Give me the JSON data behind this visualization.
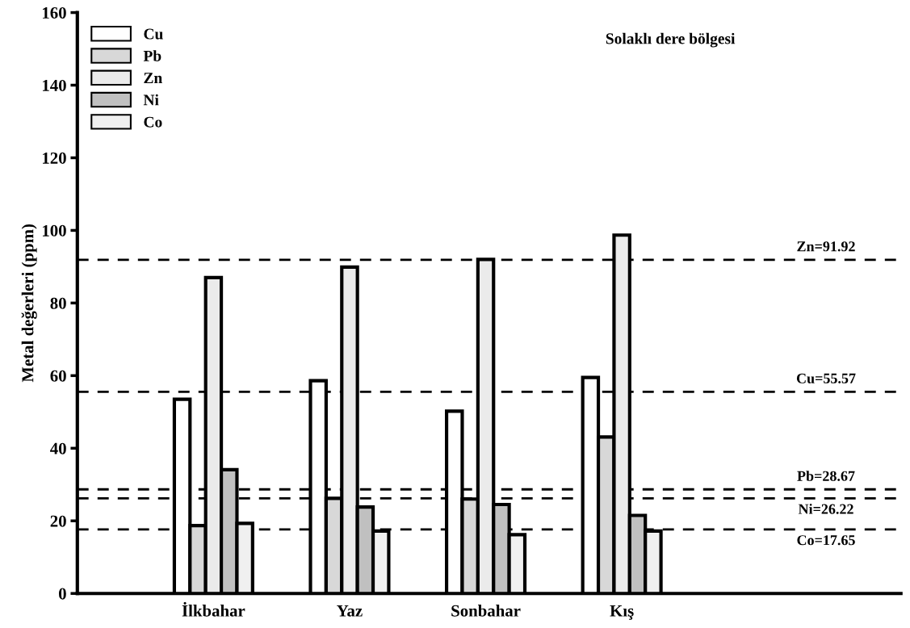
{
  "chart_data": {
    "type": "bar",
    "ylabel": "Metal değerleri (ppm)",
    "annotations": [
      "Solaklı dere bölgesi"
    ],
    "categories": [
      "İlkbahar",
      "Yaz",
      "Sonbahar",
      "Kış"
    ],
    "series": [
      {
        "name": "Cu",
        "color": "#ffffff",
        "values": [
          53.5,
          58.6,
          50.2,
          59.5
        ]
      },
      {
        "name": "Pb",
        "color": "#d8d8d8",
        "values": [
          18.7,
          26.2,
          26.0,
          43.1
        ]
      },
      {
        "name": "Zn",
        "color": "#ebebeb",
        "values": [
          87.0,
          89.9,
          92.0,
          98.7
        ]
      },
      {
        "name": "Ni",
        "color": "#c0c0c0",
        "values": [
          34.1,
          23.8,
          24.5,
          21.5
        ]
      },
      {
        "name": "Co",
        "color": "#f0f0f0",
        "values": [
          19.3,
          17.2,
          16.2,
          17.2
        ]
      }
    ],
    "ylim": [
      0,
      160
    ],
    "yticks": [
      0,
      20,
      40,
      60,
      80,
      100,
      120,
      140,
      160
    ],
    "ref_lines": [
      {
        "axis": "y",
        "value": 91.92,
        "label": "Zn=91.92",
        "color": "#000000",
        "line_style": "dashed"
      },
      {
        "axis": "y",
        "value": 55.57,
        "label": "Cu=55.57",
        "color": "#000000",
        "line_style": "dashed"
      },
      {
        "axis": "y",
        "value": 28.67,
        "label": "Pb=28.67",
        "color": "#000000",
        "line_style": "dashed"
      },
      {
        "axis": "y",
        "value": 26.22,
        "label": "Ni=26.22",
        "color": "#000000",
        "line_style": "dashed"
      },
      {
        "axis": "y",
        "value": 17.65,
        "label": "Co=17.65",
        "color": "#000000",
        "line_style": "dashed"
      }
    ],
    "legend": "top left",
    "grid": false
  }
}
